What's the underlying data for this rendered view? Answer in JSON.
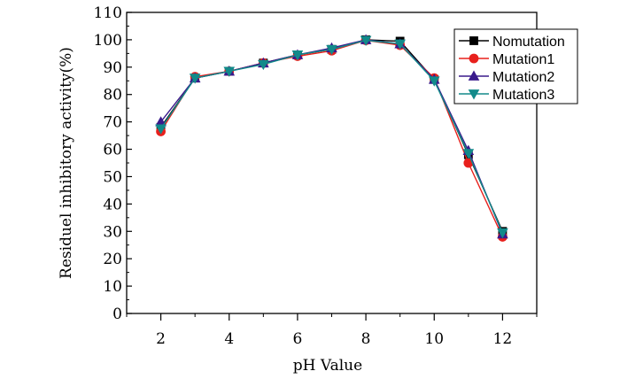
{
  "chart_data": {
    "type": "line",
    "title": "",
    "xlabel": "pH Value",
    "ylabel": "Residuel inhibitory activity(%)",
    "xlim": [
      1,
      13
    ],
    "ylim": [
      0,
      110
    ],
    "x_ticks": [
      2,
      4,
      6,
      8,
      10,
      12
    ],
    "y_ticks": [
      0,
      10,
      20,
      30,
      40,
      50,
      60,
      70,
      80,
      90,
      100,
      110
    ],
    "x": [
      2,
      3,
      4,
      5,
      6,
      7,
      8,
      9,
      10,
      11,
      12
    ],
    "series": [
      {
        "name": "Nomutation",
        "color": "#000000",
        "marker": "square",
        "values": [
          68,
          86,
          88.5,
          91.5,
          94.5,
          96.5,
          100,
          99.5,
          85.5,
          58,
          30
        ]
      },
      {
        "name": "Mutation1",
        "color": "#e8201c",
        "marker": "circle",
        "values": [
          66.5,
          86.5,
          88.5,
          91.5,
          94,
          96,
          99.8,
          98,
          86,
          55,
          28
        ]
      },
      {
        "name": "Mutation2",
        "color": "#3a1a8c",
        "marker": "triangle-up",
        "values": [
          70,
          86,
          88.5,
          91.5,
          94.5,
          97,
          100,
          98.5,
          85.5,
          59.5,
          29
        ]
      },
      {
        "name": "Mutation3",
        "color": "#128a8a",
        "marker": "triangle-down",
        "values": [
          67.5,
          86,
          88.5,
          91,
          94.5,
          96.5,
          99.8,
          98.5,
          85,
          58.5,
          29.5
        ]
      }
    ],
    "legend_position": "top-right",
    "grid": false
  }
}
